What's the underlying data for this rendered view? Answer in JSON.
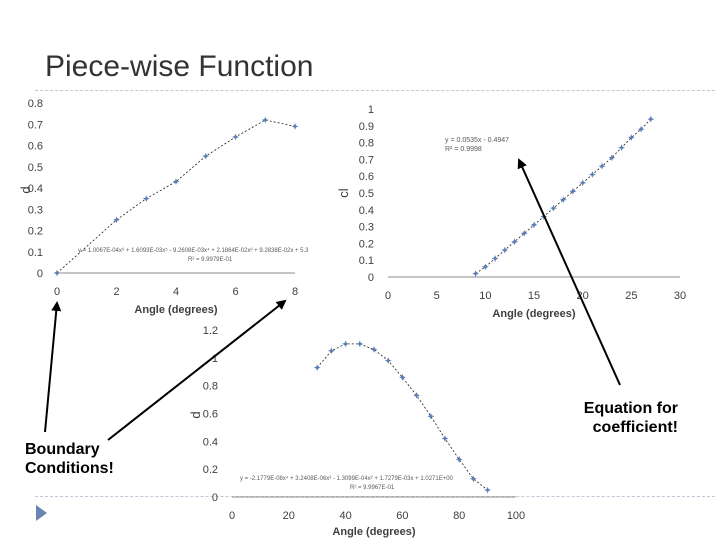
{
  "slide": {
    "title": "Piece-wise Function"
  },
  "annotations": {
    "left_line1": "Boundary",
    "left_line2": "Conditions!",
    "right_line1": "Equation for",
    "right_line2": "coefficient!"
  },
  "colors": {
    "marker": "#5b7fb5",
    "arrow": "#000000",
    "text": "#333333",
    "accent": "#6b85b3"
  },
  "chart_data": [
    {
      "type": "scatter",
      "xlabel": "Angle (degrees)",
      "ylabel": "d",
      "xlim": [
        0,
        8
      ],
      "ylim": [
        0,
        0.8
      ],
      "xticks": [
        "0",
        "2",
        "4",
        "6",
        "8"
      ],
      "yticks": [
        "0",
        "0.1",
        "0.2",
        "0.3",
        "0.4",
        "0.5",
        "0.6",
        "0.7",
        "0.8"
      ],
      "x": [
        0,
        2,
        3,
        4,
        5,
        6,
        7,
        8
      ],
      "y": [
        0.0,
        0.25,
        0.35,
        0.43,
        0.55,
        0.64,
        0.72,
        0.69
      ],
      "trendline": "polynomial",
      "equation": "y = 1.0067E-04x⁶ + 1.6093E-03x⁵ - 9.2608E-03x⁴ + 2.1864E-02x³ + 9.2838E-02x + 5.3",
      "r2": "R² = 9.9979E-01",
      "grid": false
    },
    {
      "type": "scatter",
      "xlabel": "Angle (degrees)",
      "ylabel": "cl",
      "xlim": [
        0,
        30
      ],
      "ylim": [
        0,
        1
      ],
      "xticks": [
        "0",
        "5",
        "10",
        "15",
        "20",
        "25",
        "30"
      ],
      "yticks": [
        "0",
        "0.1",
        "0.2",
        "0.3",
        "0.4",
        "0.5",
        "0.6",
        "0.7",
        "0.8",
        "0.9",
        "1"
      ],
      "x": [
        9,
        10,
        11,
        12,
        13,
        14,
        15,
        16,
        17,
        18,
        19,
        20,
        21,
        22,
        23,
        24,
        25,
        26,
        27
      ],
      "y": [
        0.02,
        0.06,
        0.11,
        0.16,
        0.21,
        0.26,
        0.31,
        0.36,
        0.41,
        0.46,
        0.51,
        0.56,
        0.61,
        0.66,
        0.71,
        0.77,
        0.83,
        0.88,
        0.94
      ],
      "trendline": "linear",
      "equation": "y = 0.0535x - 0.4947",
      "r2": "R² = 0.9998",
      "grid": false
    },
    {
      "type": "scatter",
      "xlabel": "Angle (degrees)",
      "ylabel": "d",
      "xlim": [
        0,
        100
      ],
      "ylim": [
        0,
        1.2
      ],
      "xticks": [
        "0",
        "20",
        "40",
        "60",
        "80",
        "100"
      ],
      "yticks": [
        "0",
        "0.2",
        "0.4",
        "0.6",
        "0.8",
        "1",
        "1.2"
      ],
      "x": [
        30,
        35,
        40,
        45,
        50,
        55,
        60,
        65,
        70,
        75,
        80,
        85,
        90
      ],
      "y": [
        0.93,
        1.05,
        1.1,
        1.1,
        1.06,
        0.98,
        0.86,
        0.73,
        0.58,
        0.42,
        0.27,
        0.13,
        0.05
      ],
      "trendline": "polynomial",
      "equation": "y = -2.1779E-08x⁴ + 3.2408E-06x³ - 1.3099E-04x² + 1.7279E-03x + 1.0271E+00",
      "r2": "R² = 9.9967E-01",
      "grid": false
    }
  ]
}
